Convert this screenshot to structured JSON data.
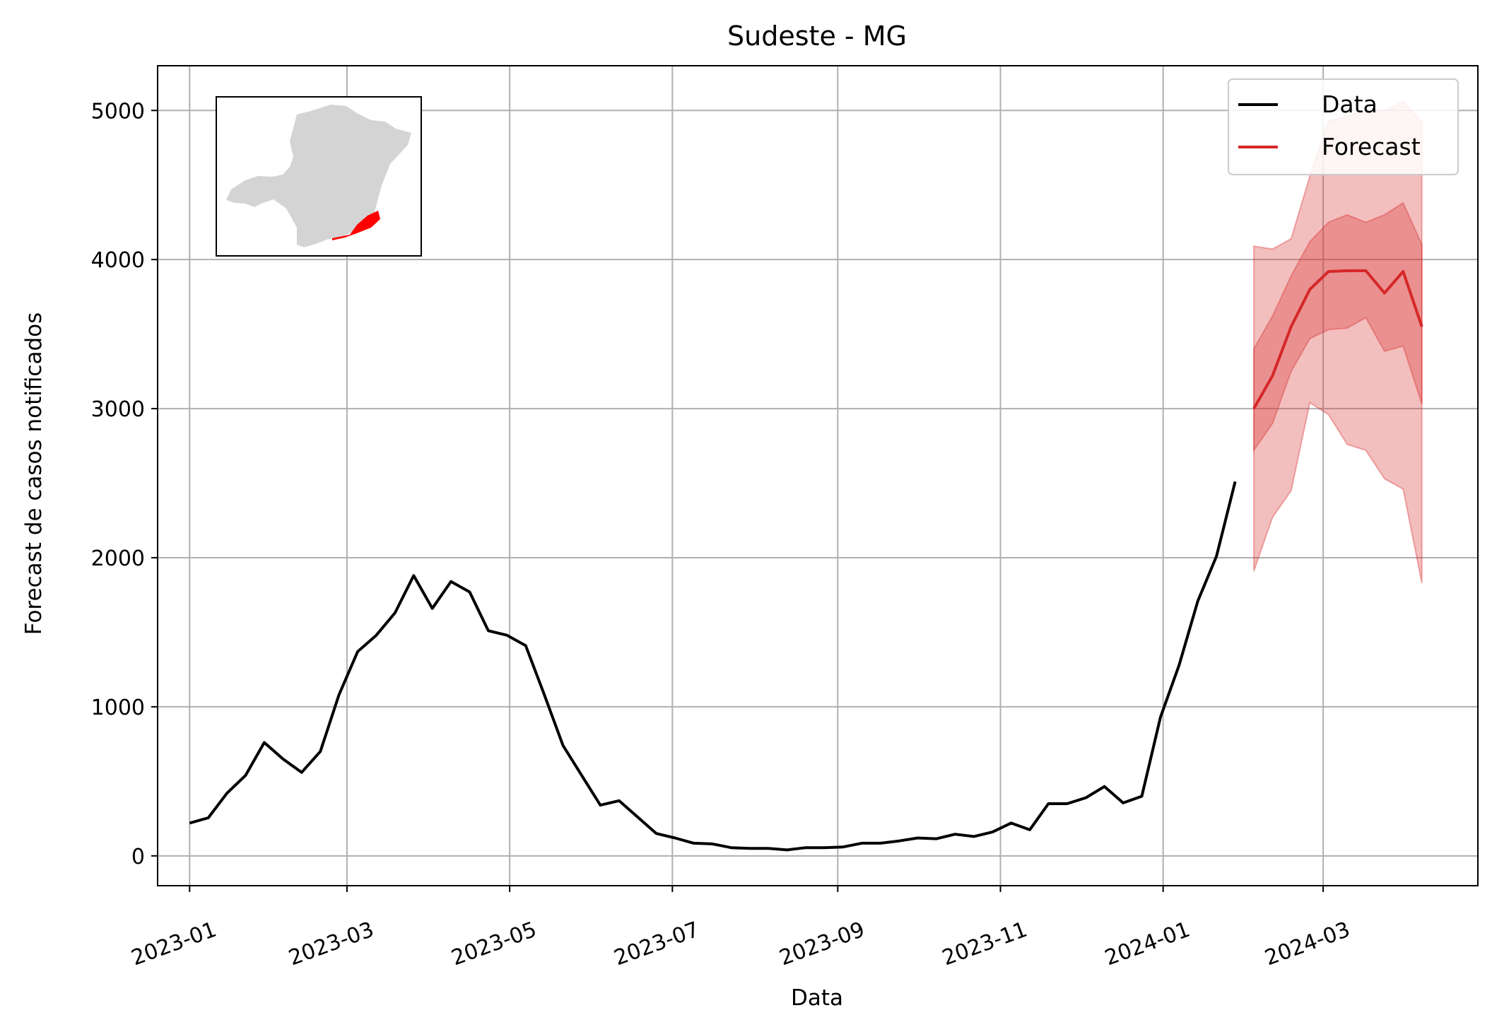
{
  "chart_data": {
    "type": "line",
    "title": "Sudeste - MG",
    "xlabel": "Data",
    "ylabel": "Forecast de casos notificados",
    "x_range": [
      "2022-12-20",
      "2024-04-28"
    ],
    "ylim": [
      -200,
      5300
    ],
    "grid": true,
    "legend": "top-right",
    "y_ticks": [
      0,
      1000,
      2000,
      3000,
      4000,
      5000
    ],
    "x_ticks": [
      "2023-01",
      "2023-03",
      "2023-05",
      "2023-07",
      "2023-09",
      "2023-11",
      "2024-01",
      "2024-03"
    ],
    "colors": {
      "data": "#000000",
      "forecast": "#d62728",
      "band": "#d62728",
      "map_fill": "#d4d4d4",
      "map_highlight": "#ff0000"
    },
    "series": [
      {
        "name": "Data",
        "x": [
          "2023-01-01",
          "2023-01-08",
          "2023-01-15",
          "2023-01-22",
          "2023-01-29",
          "2023-02-05",
          "2023-02-12",
          "2023-02-19",
          "2023-02-26",
          "2023-03-05",
          "2023-03-12",
          "2023-03-19",
          "2023-03-26",
          "2023-04-02",
          "2023-04-09",
          "2023-04-16",
          "2023-04-23",
          "2023-04-30",
          "2023-05-07",
          "2023-05-14",
          "2023-05-21",
          "2023-05-28",
          "2023-06-04",
          "2023-06-11",
          "2023-06-18",
          "2023-06-25",
          "2023-07-02",
          "2023-07-09",
          "2023-07-16",
          "2023-07-23",
          "2023-07-30",
          "2023-08-06",
          "2023-08-13",
          "2023-08-20",
          "2023-08-27",
          "2023-09-03",
          "2023-09-10",
          "2023-09-17",
          "2023-09-24",
          "2023-10-01",
          "2023-10-08",
          "2023-10-15",
          "2023-10-22",
          "2023-10-29",
          "2023-11-05",
          "2023-11-12",
          "2023-11-19",
          "2023-11-26",
          "2023-12-03",
          "2023-12-10",
          "2023-12-17",
          "2023-12-24",
          "2023-12-31",
          "2024-01-07",
          "2024-01-14",
          "2024-01-21",
          "2024-01-28"
        ],
        "values": [
          220,
          255,
          420,
          540,
          760,
          650,
          560,
          700,
          1080,
          1370,
          1480,
          1630,
          1880,
          1660,
          1840,
          1770,
          1510,
          1480,
          1410,
          1080,
          740,
          540,
          340,
          370,
          260,
          150,
          120,
          85,
          80,
          55,
          50,
          50,
          40,
          55,
          55,
          60,
          85,
          85,
          100,
          120,
          115,
          145,
          130,
          160,
          220,
          175,
          350,
          350,
          390,
          465,
          355,
          400,
          930,
          1280,
          1710,
          2010,
          2510
        ]
      },
      {
        "name": "Forecast",
        "x": [
          "2024-02-04",
          "2024-02-11",
          "2024-02-18",
          "2024-02-25",
          "2024-03-03",
          "2024-03-10",
          "2024-03-17",
          "2024-03-24",
          "2024-03-31",
          "2024-04-07"
        ],
        "values": [
          3000,
          3220,
          3550,
          3800,
          3920,
          3925,
          3925,
          3775,
          3920,
          3550
        ],
        "inner_band": {
          "lower": [
            2720,
            2900,
            3250,
            3470,
            3530,
            3540,
            3610,
            3385,
            3420,
            3030
          ],
          "upper": [
            3400,
            3620,
            3890,
            4120,
            4250,
            4300,
            4250,
            4300,
            4380,
            4100
          ]
        },
        "outer_band": {
          "lower": [
            1910,
            2270,
            2450,
            3040,
            2960,
            2760,
            2720,
            2530,
            2460,
            1830
          ],
          "upper": [
            4090,
            4070,
            4140,
            4560,
            4930,
            4960,
            5000,
            5000,
            5060,
            4920
          ]
        }
      }
    ]
  }
}
